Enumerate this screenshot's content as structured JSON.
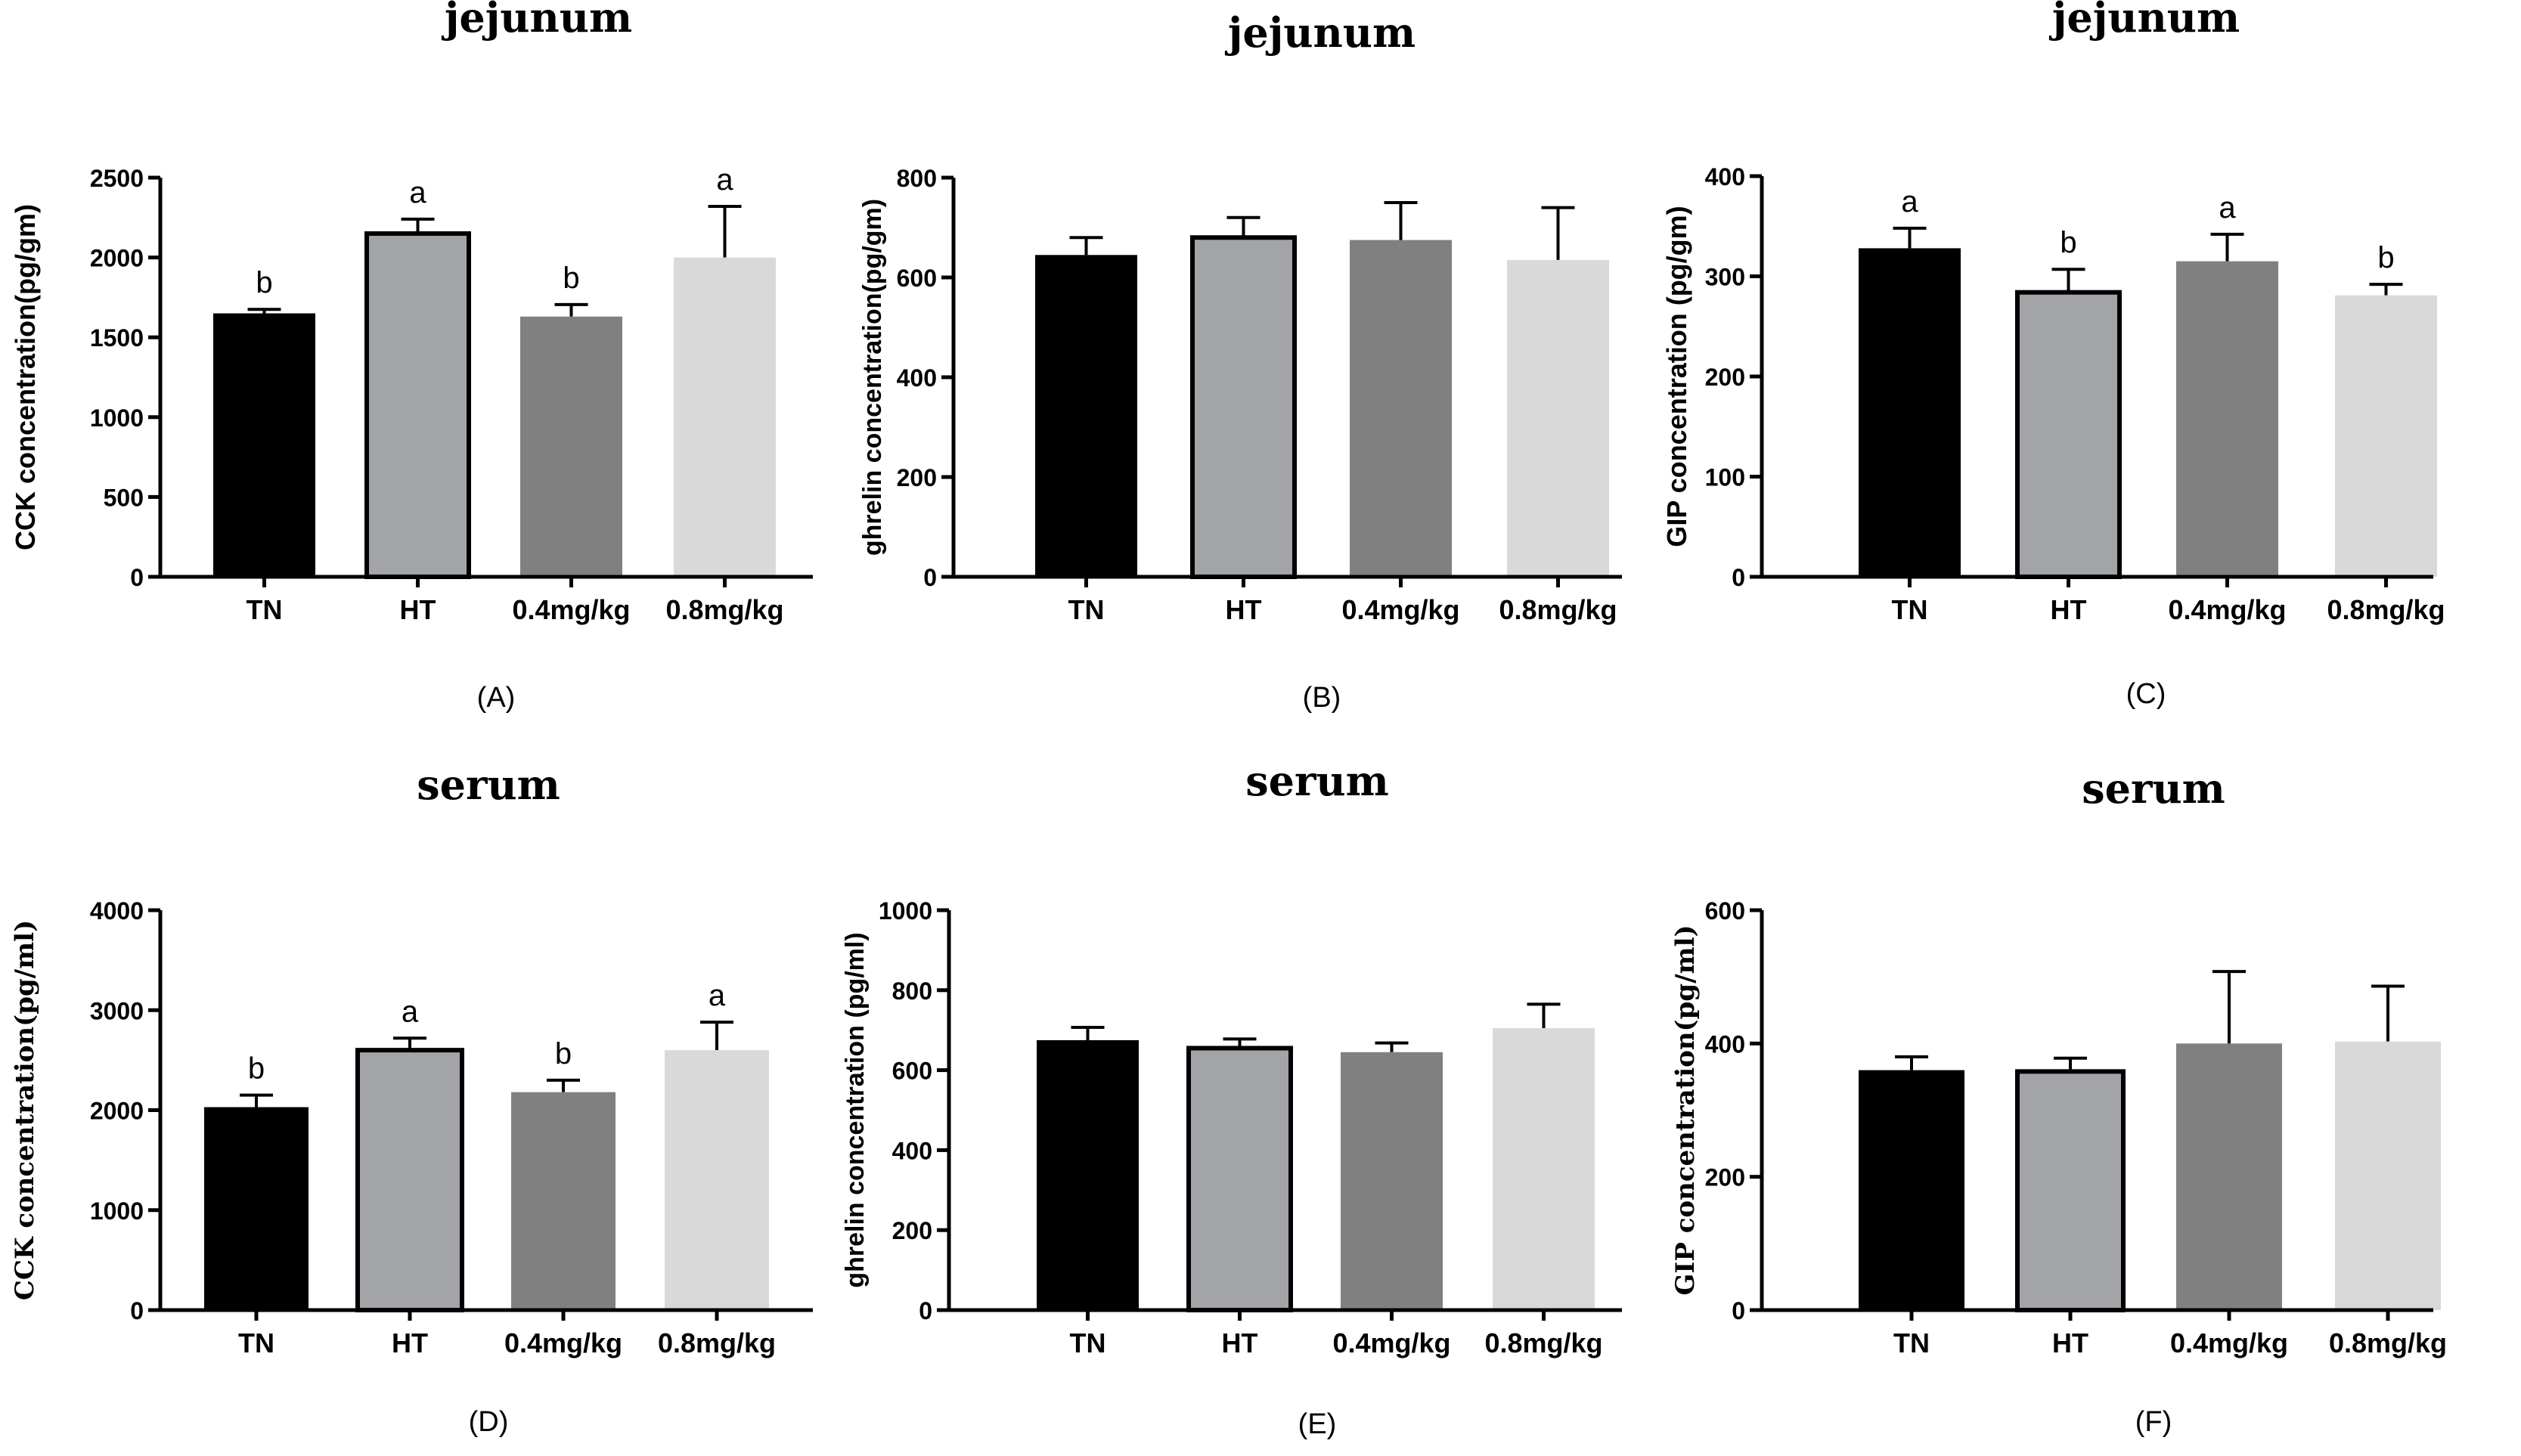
{
  "colors": {
    "TN": "#000000",
    "HT": "#a3a4a8",
    "0.4mg/kg": "#808080",
    "0.8mg/kg": "#d9d9d9",
    "axis": "#000000",
    "background": "#ffffff"
  },
  "chart_data": [
    {
      "type": "bar",
      "panel": "(A)",
      "title": "jejunum",
      "ylabel": "CCK concentration(pg/gm)",
      "xlabel": "",
      "categories": [
        "TN",
        "HT",
        "0.4mg/kg",
        "0.8mg/kg"
      ],
      "values": [
        1650,
        2150,
        1630,
        2000
      ],
      "errors": [
        25,
        90,
        75,
        320
      ],
      "significance": [
        "b",
        "a",
        "b",
        "a"
      ],
      "ylim": [
        0,
        2500
      ],
      "yticks": [
        "0",
        "500",
        "1000",
        "1500",
        "2000",
        "2500"
      ]
    },
    {
      "type": "bar",
      "panel": "(B)",
      "title": "jejunum",
      "ylabel": "ghrelin concentration(pg/gm)",
      "xlabel": "",
      "categories": [
        "TN",
        "HT",
        "0.4mg/kg",
        "0.8mg/kg"
      ],
      "values": [
        645,
        680,
        675,
        635
      ],
      "errors": [
        35,
        40,
        75,
        105
      ],
      "significance": [
        "",
        "",
        "",
        ""
      ],
      "ylim": [
        0,
        800
      ],
      "yticks": [
        "0",
        "200",
        "400",
        "600",
        "800"
      ]
    },
    {
      "type": "bar",
      "panel": "(C)",
      "title": "jejunum",
      "ylabel": "GIP concentration (pg/gm)",
      "xlabel": "",
      "categories": [
        "TN",
        "HT",
        "0.4mg/kg",
        "0.8mg/kg"
      ],
      "values": [
        328,
        284,
        315,
        281
      ],
      "errors": [
        20,
        23,
        27,
        11
      ],
      "significance": [
        "a",
        "b",
        "a",
        "b"
      ],
      "ylim": [
        0,
        400
      ],
      "yticks": [
        "0",
        "100",
        "200",
        "300",
        "400"
      ]
    },
    {
      "type": "bar",
      "panel": "(D)",
      "title": "serum",
      "ylabel": "CCK concentration(pg/ml)",
      "xlabel": "",
      "categories": [
        "TN",
        "HT",
        "0.4mg/kg",
        "0.8mg/kg"
      ],
      "values": [
        2030,
        2600,
        2180,
        2600
      ],
      "errors": [
        120,
        120,
        120,
        280
      ],
      "significance": [
        "b",
        "a",
        "b",
        "a"
      ],
      "ylim": [
        0,
        4000
      ],
      "yticks": [
        "0",
        "1000",
        "2000",
        "3000",
        "4000"
      ]
    },
    {
      "type": "bar",
      "panel": "(E)",
      "title": "serum",
      "ylabel": "ghrelin concentration (pg/ml)",
      "xlabel": "",
      "categories": [
        "TN",
        "HT",
        "0.4mg/kg",
        "0.8mg/kg"
      ],
      "values": [
        675,
        655,
        645,
        705
      ],
      "errors": [
        32,
        23,
        23,
        60
      ],
      "significance": [
        "",
        "",
        "",
        ""
      ],
      "ylim": [
        0,
        1000
      ],
      "yticks": [
        "0",
        "200",
        "400",
        "600",
        "800",
        "1000"
      ]
    },
    {
      "type": "bar",
      "panel": "(F)",
      "title": "serum",
      "ylabel": "GIP concentration(pg/ml)",
      "xlabel": "",
      "categories": [
        "TN",
        "HT",
        "0.4mg/kg",
        "0.8mg/kg"
      ],
      "values": [
        360,
        358,
        400,
        403
      ],
      "errors": [
        20,
        20,
        108,
        83
      ],
      "significance": [
        "",
        "",
        "",
        ""
      ],
      "ylim": [
        0,
        600
      ],
      "yticks": [
        "0",
        "200",
        "400",
        "600"
      ]
    }
  ]
}
